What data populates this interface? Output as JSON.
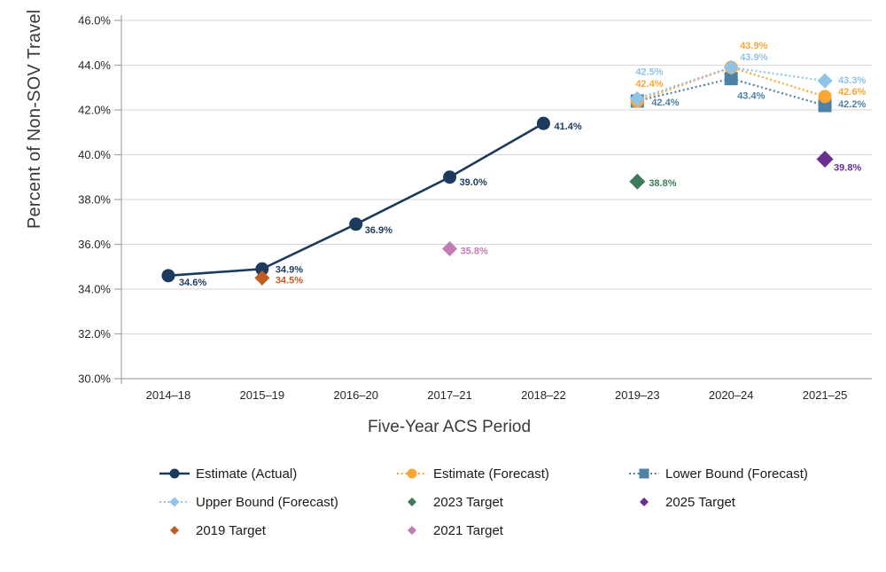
{
  "colors": {
    "gridline": "#d6d6d6",
    "axis_line": "#a6a6a6",
    "tick_text": "#262626",
    "title_text": "#3a3a3a",
    "navy": "#1b3a5c",
    "orange": "#faa634",
    "steel": "#4e81a6",
    "lightblue": "#8fc3e8",
    "green": "#3f7a58",
    "purple": "#6a2d90",
    "rust": "#c25c22",
    "pink": "#c47ab5"
  },
  "chart_data": {
    "type": "line",
    "title": "",
    "xlabel": "Five-Year ACS Period",
    "ylabel": "Percent of Non-SOV Travel",
    "ylim": [
      30,
      46
    ],
    "yticks": [
      30,
      32,
      34,
      36,
      38,
      40,
      42,
      44,
      46
    ],
    "ytick_labels": [
      "30.0%",
      "32.0%",
      "34.0%",
      "36.0%",
      "38.0%",
      "40.0%",
      "42.0%",
      "44.0%",
      "46.0%"
    ],
    "categories": [
      "2014–18",
      "2015–19",
      "2016–20",
      "2017–21",
      "2018–22",
      "2019–23",
      "2020–24",
      "2021–25"
    ],
    "grid": "horizontal",
    "legend_position": "bottom",
    "series": [
      {
        "name": "Lower Bound (Forecast)",
        "color": "#4e81a6",
        "marker": "square",
        "size": 7.5,
        "line": "dotted",
        "points": [
          {
            "c": 5,
            "v": 42.4,
            "label": "42.4%",
            "dx": 16,
            "dy": 5
          },
          {
            "c": 6,
            "v": 43.4,
            "label": "43.4%",
            "dx": 7,
            "dy": 23
          },
          {
            "c": 7,
            "v": 42.2,
            "label": "42.2%",
            "dx": 15,
            "dy": 2
          }
        ]
      },
      {
        "name": "Estimate (Forecast)",
        "color": "#faa634",
        "marker": "circle",
        "size": 7.5,
        "line": "dotted",
        "points": [
          {
            "c": 5,
            "v": 42.4,
            "label": "42.4%",
            "dx": -2,
            "dy": -16
          },
          {
            "c": 6,
            "v": 43.9,
            "label": "43.9%",
            "dx": 10,
            "dy": -21
          },
          {
            "c": 7,
            "v": 42.6,
            "label": "42.6%",
            "dx": 15,
            "dy": -2
          }
        ]
      },
      {
        "name": "Upper Bound (Forecast)",
        "color": "#8fc3e8",
        "marker": "diamond",
        "size": 8.5,
        "line": "dotted",
        "points": [
          {
            "c": 5,
            "v": 42.5,
            "label": "42.5%",
            "dx": -2,
            "dy": -27
          },
          {
            "c": 6,
            "v": 43.9,
            "label": "43.9%",
            "dx": 10,
            "dy": -8
          },
          {
            "c": 7,
            "v": 43.3,
            "label": "43.3%",
            "dx": 15,
            "dy": 3
          }
        ]
      },
      {
        "name": "Estimate (Actual)",
        "color": "#1b3a5c",
        "marker": "circle",
        "size": 7.5,
        "line": "solid",
        "points": [
          {
            "c": 0,
            "v": 34.6,
            "label": "34.6%",
            "dx": 12,
            "dy": 11
          },
          {
            "c": 1,
            "v": 34.9,
            "label": "34.9%",
            "dx": 15,
            "dy": 4
          },
          {
            "c": 2,
            "v": 36.9,
            "label": "36.9%",
            "dx": 10,
            "dy": 10
          },
          {
            "c": 3,
            "v": 39.0,
            "label": "39.0%",
            "dx": 11,
            "dy": 9
          },
          {
            "c": 4,
            "v": 41.4,
            "label": "41.4%",
            "dx": 12,
            "dy": 7
          }
        ]
      },
      {
        "name": "2019 Target",
        "color": "#c25c22",
        "marker": "diamond",
        "size": 8.5,
        "line": "none",
        "points": [
          {
            "c": 1,
            "v": 34.5,
            "label": "34.5%",
            "dx": 15,
            "dy": 6
          }
        ]
      },
      {
        "name": "2021 Target",
        "color": "#c47ab5",
        "marker": "diamond",
        "size": 8.5,
        "line": "none",
        "points": [
          {
            "c": 3,
            "v": 35.8,
            "label": "35.8%",
            "dx": 12,
            "dy": 6
          }
        ]
      },
      {
        "name": "2023 Target",
        "color": "#3f7a58",
        "marker": "diamond",
        "size": 9,
        "line": "none",
        "points": [
          {
            "c": 5,
            "v": 38.8,
            "label": "38.8%",
            "dx": 13,
            "dy": 5
          }
        ]
      },
      {
        "name": "2025 Target",
        "color": "#6a2d90",
        "marker": "diamond",
        "size": 9.5,
        "line": "none",
        "points": [
          {
            "c": 7,
            "v": 39.8,
            "label": "39.8%",
            "dx": 10,
            "dy": 13
          }
        ]
      }
    ]
  },
  "legend": {
    "items": [
      {
        "label": "Estimate (Actual)",
        "type": "line-circle",
        "line": "solid",
        "color": "#1b3a5c"
      },
      {
        "label": "Estimate (Forecast)",
        "type": "line-circle",
        "line": "dotted",
        "color": "#faa634"
      },
      {
        "label": "Lower Bound (Forecast)",
        "type": "line-square",
        "line": "dotted",
        "color": "#4e81a6"
      },
      {
        "label": "Upper Bound (Forecast)",
        "type": "line-diamond",
        "line": "dotted",
        "color": "#8fc3e8"
      },
      {
        "label": "2023 Target",
        "type": "diamond",
        "line": "none",
        "color": "#3f7a58"
      },
      {
        "label": "2025 Target",
        "type": "diamond",
        "line": "none",
        "color": "#6a2d90"
      },
      {
        "label": "2019 Target",
        "type": "diamond",
        "line": "none",
        "color": "#c25c22"
      },
      {
        "label": "2021 Target",
        "type": "diamond",
        "line": "none",
        "color": "#c47ab5"
      }
    ]
  }
}
